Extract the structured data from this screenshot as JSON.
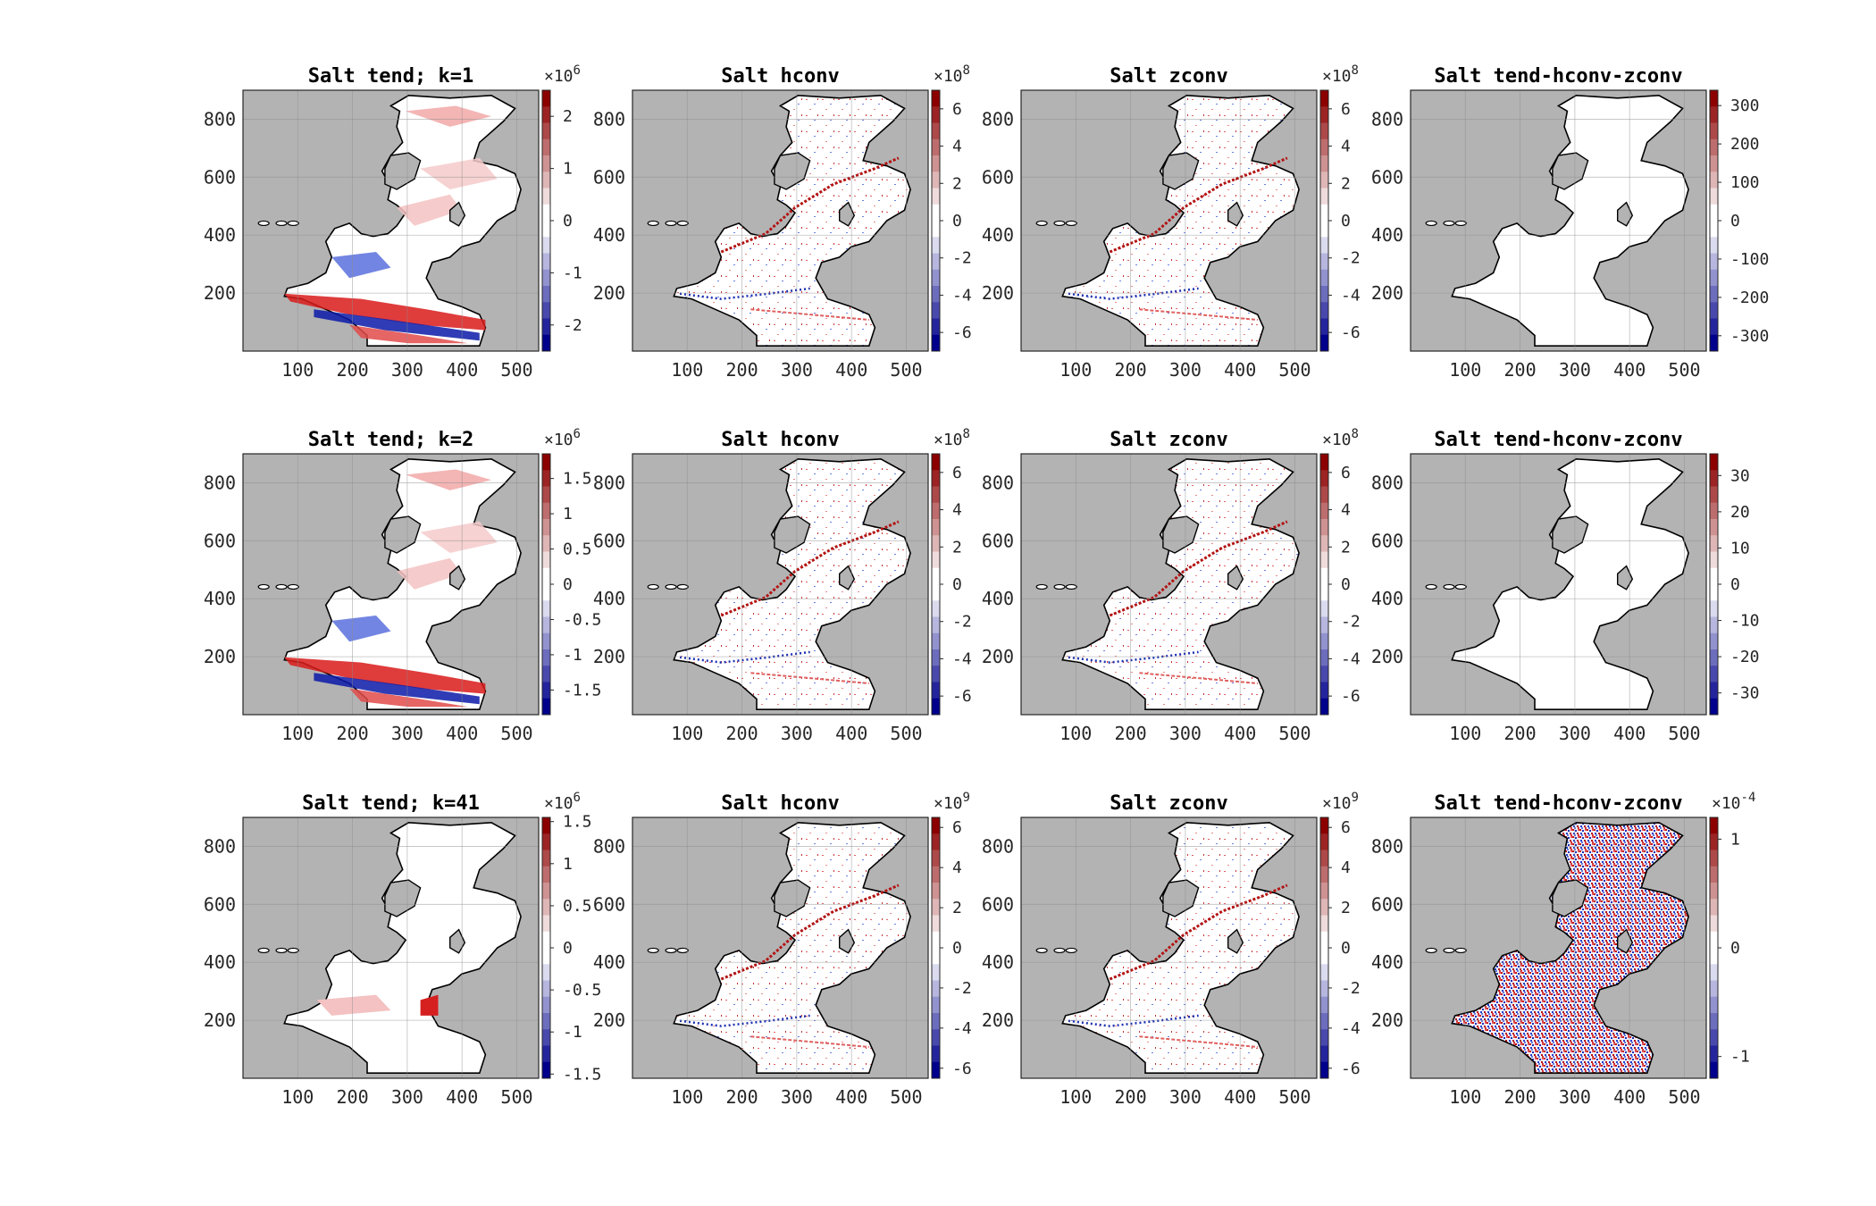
{
  "chart_data": [
    {
      "type": "heatmap",
      "title": "Salt tend; k=1",
      "xlim": [
        0,
        540
      ],
      "ylim": [
        0,
        900
      ],
      "xticks": [
        100,
        200,
        300,
        400,
        500
      ],
      "yticks": [
        200,
        400,
        600,
        800
      ],
      "grid": true,
      "colorbar": {
        "colormap": "blue-white-red",
        "clim": [
          -2.5,
          2.5
        ],
        "ticks": [
          -2,
          -1,
          0,
          1,
          2
        ],
        "tick_labels": [
          "-2",
          "-1",
          "0",
          "1",
          "2"
        ],
        "exponent": "6"
      }
    },
    {
      "type": "heatmap",
      "title": "Salt hconv",
      "xlim": [
        0,
        540
      ],
      "ylim": [
        0,
        900
      ],
      "xticks": [
        100,
        200,
        300,
        400,
        500
      ],
      "yticks": [
        200,
        400,
        600,
        800
      ],
      "grid": true,
      "colorbar": {
        "colormap": "blue-white-red",
        "clim": [
          -7,
          7
        ],
        "ticks": [
          -6,
          -4,
          -2,
          0,
          2,
          4,
          6
        ],
        "tick_labels": [
          "-6",
          "-4",
          "-2",
          "0",
          "2",
          "4",
          "6"
        ],
        "exponent": "8"
      }
    },
    {
      "type": "heatmap",
      "title": "Salt zconv",
      "xlim": [
        0,
        540
      ],
      "ylim": [
        0,
        900
      ],
      "xticks": [
        100,
        200,
        300,
        400,
        500
      ],
      "yticks": [
        200,
        400,
        600,
        800
      ],
      "grid": true,
      "colorbar": {
        "colormap": "blue-white-red",
        "clim": [
          -7,
          7
        ],
        "ticks": [
          -6,
          -4,
          -2,
          0,
          2,
          4,
          6
        ],
        "tick_labels": [
          "-6",
          "-4",
          "-2",
          "0",
          "2",
          "4",
          "6"
        ],
        "exponent": "8"
      }
    },
    {
      "type": "heatmap",
      "title": "Salt tend-hconv-zconv",
      "xlim": [
        0,
        540
      ],
      "ylim": [
        0,
        900
      ],
      "xticks": [
        100,
        200,
        300,
        400,
        500
      ],
      "yticks": [
        200,
        400,
        600,
        800
      ],
      "grid": true,
      "colorbar": {
        "colormap": "blue-white-red",
        "clim": [
          -340,
          340
        ],
        "ticks": [
          -300,
          -200,
          -100,
          0,
          100,
          200,
          300
        ],
        "tick_labels": [
          "-300",
          "-200",
          "-100",
          "0",
          "100",
          "200",
          "300"
        ],
        "exponent": ""
      }
    },
    {
      "type": "heatmap",
      "title": "Salt tend; k=2",
      "xlim": [
        0,
        540
      ],
      "ylim": [
        0,
        900
      ],
      "xticks": [
        100,
        200,
        300,
        400,
        500
      ],
      "yticks": [
        200,
        400,
        600,
        800
      ],
      "grid": true,
      "colorbar": {
        "colormap": "blue-white-red",
        "clim": [
          -1.85,
          1.85
        ],
        "ticks": [
          -1.5,
          -1,
          -0.5,
          0,
          0.5,
          1,
          1.5
        ],
        "tick_labels": [
          "-1.5",
          "-1",
          "-0.5",
          "0",
          "0.5",
          "1",
          "1.5"
        ],
        "exponent": "6"
      }
    },
    {
      "type": "heatmap",
      "title": "Salt hconv",
      "xlim": [
        0,
        540
      ],
      "ylim": [
        0,
        900
      ],
      "xticks": [
        100,
        200,
        300,
        400,
        500
      ],
      "yticks": [
        200,
        400,
        600,
        800
      ],
      "grid": true,
      "colorbar": {
        "colormap": "blue-white-red",
        "clim": [
          -7,
          7
        ],
        "ticks": [
          -6,
          -4,
          -2,
          0,
          2,
          4,
          6
        ],
        "tick_labels": [
          "-6",
          "-4",
          "-2",
          "0",
          "2",
          "4",
          "6"
        ],
        "exponent": "8"
      }
    },
    {
      "type": "heatmap",
      "title": "Salt zconv",
      "xlim": [
        0,
        540
      ],
      "ylim": [
        0,
        900
      ],
      "xticks": [
        100,
        200,
        300,
        400,
        500
      ],
      "yticks": [
        200,
        400,
        600,
        800
      ],
      "grid": true,
      "colorbar": {
        "colormap": "blue-white-red",
        "clim": [
          -7,
          7
        ],
        "ticks": [
          -6,
          -4,
          -2,
          0,
          2,
          4,
          6
        ],
        "tick_labels": [
          "-6",
          "-4",
          "-2",
          "0",
          "2",
          "4",
          "6"
        ],
        "exponent": "8"
      }
    },
    {
      "type": "heatmap",
      "title": "Salt tend-hconv-zconv",
      "xlim": [
        0,
        540
      ],
      "ylim": [
        0,
        900
      ],
      "xticks": [
        100,
        200,
        300,
        400,
        500
      ],
      "yticks": [
        200,
        400,
        600,
        800
      ],
      "grid": true,
      "colorbar": {
        "colormap": "blue-white-red",
        "clim": [
          -36,
          36
        ],
        "ticks": [
          -30,
          -20,
          -10,
          0,
          10,
          20,
          30
        ],
        "tick_labels": [
          "-30",
          "-20",
          "-10",
          "0",
          "10",
          "20",
          "30"
        ],
        "exponent": ""
      }
    },
    {
      "type": "heatmap",
      "title": "Salt tend; k=41",
      "xlim": [
        0,
        540
      ],
      "ylim": [
        0,
        900
      ],
      "xticks": [
        100,
        200,
        300,
        400,
        500
      ],
      "yticks": [
        200,
        400,
        600,
        800
      ],
      "grid": true,
      "colorbar": {
        "colormap": "blue-white-red",
        "clim": [
          -1.55,
          1.55
        ],
        "ticks": [
          -1.5,
          -1,
          -0.5,
          0,
          0.5,
          1,
          1.5
        ],
        "tick_labels": [
          "-1.5",
          "-1",
          "-0.5",
          "0",
          "0.5",
          "1",
          "1.5"
        ],
        "exponent": "6"
      }
    },
    {
      "type": "heatmap",
      "title": "Salt hconv",
      "xlim": [
        0,
        540
      ],
      "ylim": [
        0,
        900
      ],
      "xticks": [
        100,
        200,
        300,
        400,
        500
      ],
      "yticks": [
        200,
        400,
        600,
        800
      ],
      "grid": true,
      "colorbar": {
        "colormap": "blue-white-red",
        "clim": [
          -6.5,
          6.5
        ],
        "ticks": [
          -6,
          -4,
          -2,
          0,
          2,
          4,
          6
        ],
        "tick_labels": [
          "-6",
          "-4",
          "-2",
          "0",
          "2",
          "4",
          "6"
        ],
        "exponent": "9"
      }
    },
    {
      "type": "heatmap",
      "title": "Salt zconv",
      "xlim": [
        0,
        540
      ],
      "ylim": [
        0,
        900
      ],
      "xticks": [
        100,
        200,
        300,
        400,
        500
      ],
      "yticks": [
        200,
        400,
        600,
        800
      ],
      "grid": true,
      "colorbar": {
        "colormap": "blue-white-red",
        "clim": [
          -6.5,
          6.5
        ],
        "ticks": [
          -6,
          -4,
          -2,
          0,
          2,
          4,
          6
        ],
        "tick_labels": [
          "-6",
          "-4",
          "-2",
          "0",
          "2",
          "4",
          "6"
        ],
        "exponent": "9"
      }
    },
    {
      "type": "heatmap",
      "title": "Salt tend-hconv-zconv",
      "xlim": [
        0,
        540
      ],
      "ylim": [
        0,
        900
      ],
      "xticks": [
        100,
        200,
        300,
        400,
        500
      ],
      "yticks": [
        200,
        400,
        600,
        800
      ],
      "grid": true,
      "colorbar": {
        "colormap": "blue-white-red",
        "clim": [
          -1.2,
          1.2
        ],
        "ticks": [
          -1,
          0,
          1
        ],
        "tick_labels": [
          "-1",
          "0",
          "1"
        ],
        "exponent": "-4"
      }
    }
  ],
  "colors": {
    "land": "#b3b3b3",
    "ocean": "#ffffff",
    "grid": "#8c8c8c",
    "positive": "#cc0000",
    "negative": "#0000b3",
    "coast": "#000000"
  }
}
